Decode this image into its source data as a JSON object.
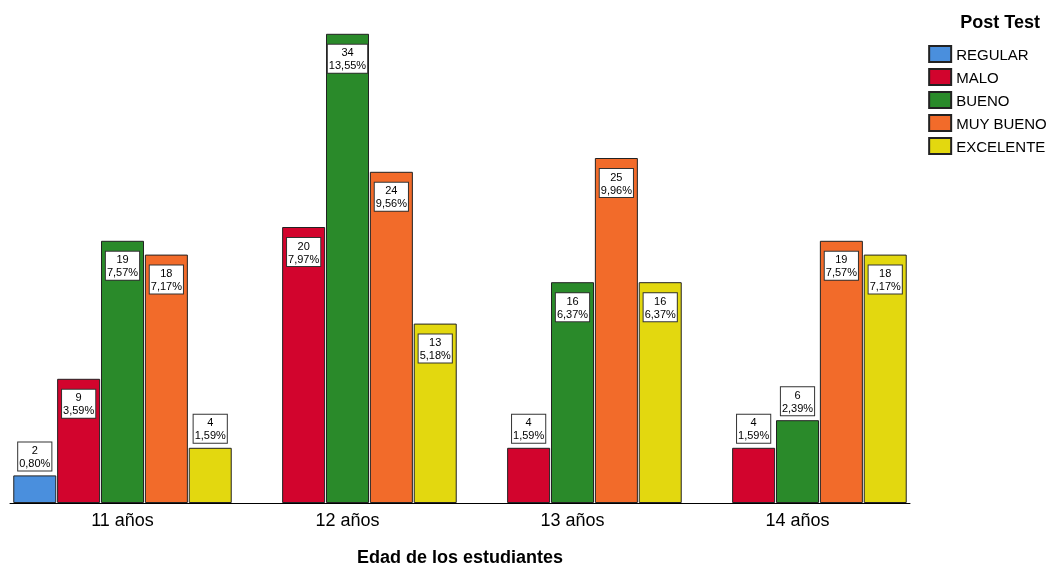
{
  "chart_data": {
    "type": "bar",
    "xlabel": "Edad de los estudiantes",
    "legend_title": "Post Test",
    "legend": "top right",
    "tick_labels": "x",
    "categories": [
      "11 años",
      "12 años",
      "13 años",
      "14 años"
    ],
    "series": [
      {
        "name": "REGULAR",
        "color": "#4a8fdd",
        "values": [
          2,
          null,
          null,
          null
        ],
        "value_labels": [
          "2\n0,80%",
          null,
          null,
          null
        ]
      },
      {
        "name": "MALO",
        "color": "#d2042d",
        "values": [
          9,
          20,
          4,
          4
        ],
        "value_labels": [
          "9\n3,59%",
          "20\n7,97%",
          "4\n1,59%",
          "4\n1,59%"
        ]
      },
      {
        "name": "BUENO",
        "color": "#2a8a2a",
        "values": [
          19,
          34,
          16,
          6
        ],
        "value_labels": [
          "19\n7,57%",
          "34\n13,55%",
          "16\n6,37%",
          "6\n2,39%"
        ]
      },
      {
        "name": "MUY BUENO",
        "color": "#f26b2a",
        "values": [
          18,
          24,
          25,
          19
        ],
        "value_labels": [
          "18\n7,17%",
          "24\n9,56%",
          "25\n9,96%",
          "19\n7,57%"
        ]
      },
      {
        "name": "EXCELENTE",
        "color": "#e3d80f",
        "values": [
          4,
          13,
          16,
          18
        ],
        "value_labels": [
          "4\n1,59%",
          "13\n5,18%",
          "16\n6,37%",
          "18\n7,17%"
        ]
      }
    ]
  }
}
